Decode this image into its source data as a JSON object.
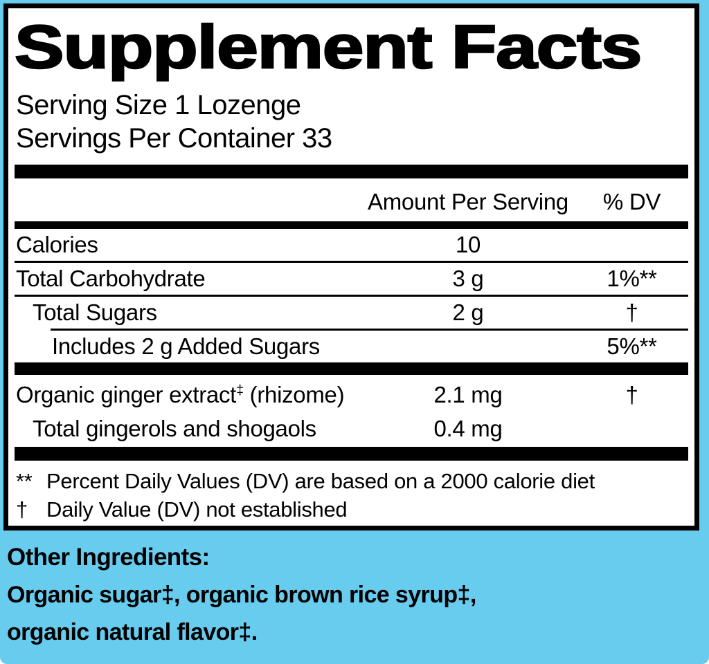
{
  "colors": {
    "background_blue": "#68CCEF",
    "panel_background": "#FFFFFF",
    "border_and_text": "#000000"
  },
  "panel": {
    "title": "Supplement Facts",
    "serving_size": "Serving Size 1 Lozenge",
    "servings_per_container": "Servings Per Container 33",
    "columns": {
      "amount": "Amount Per Serving",
      "dv": "% DV"
    },
    "nutrients": [
      {
        "name": "Calories",
        "amount": "10",
        "dv": ""
      },
      {
        "name": "Total Carbohydrate",
        "amount": "3 g",
        "dv": "1%**"
      },
      {
        "name": "Total Sugars",
        "amount": "2 g",
        "dv": "†"
      },
      {
        "name": "Includes 2 g Added Sugars",
        "amount": "",
        "dv": "5%**"
      }
    ],
    "ingredients": [
      {
        "name": "Organic ginger extract",
        "sup": "‡",
        "suffix": " (rhizome)",
        "amount": "2.1 mg",
        "dv": "†"
      },
      {
        "name": "Total gingerols and shogaols",
        "amount": "0.4 mg",
        "dv": ""
      }
    ],
    "footnotes": [
      {
        "marker": "**",
        "text": "Percent Daily Values (DV) are based on a 2000 calorie diet"
      },
      {
        "marker": "†",
        "text": "Daily Value (DV) not established"
      }
    ]
  },
  "other_ingredients": {
    "heading": "Other Ingredients:",
    "line1": "Organic sugar‡, organic brown rice syrup‡,",
    "line2": "organic natural flavor‡."
  }
}
